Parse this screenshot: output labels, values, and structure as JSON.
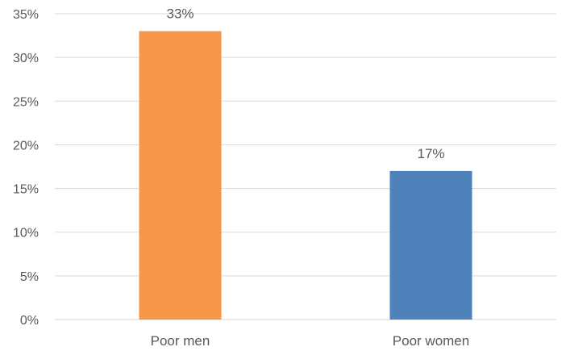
{
  "chart_data": {
    "type": "bar",
    "categories": [
      "Poor men",
      "Poor women"
    ],
    "values": [
      33,
      17
    ],
    "data_labels": [
      "33%",
      "17%"
    ],
    "bar_colors": [
      "#F79646",
      "#4F81BD"
    ],
    "ylim": [
      0,
      35
    ],
    "y_ticks": [
      0,
      5,
      10,
      15,
      20,
      25,
      30,
      35
    ],
    "y_tick_labels": [
      "0%",
      "5%",
      "10%",
      "15%",
      "20%",
      "25%",
      "30%",
      "35%"
    ],
    "grid": true,
    "title": "",
    "xlabel": "",
    "ylabel": ""
  }
}
